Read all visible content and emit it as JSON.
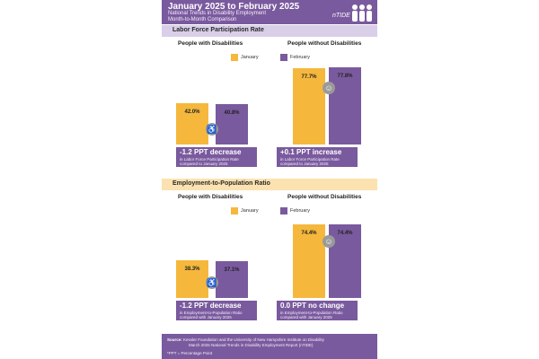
{
  "header": {
    "title": "January 2025 to February 2025",
    "subtitle_line1": "National Trends in Disability Employment",
    "subtitle_line2": "Month-to-Month Comparison",
    "logo_text": "nTIDE"
  },
  "colors": {
    "purple": "#7a5a9e",
    "orange": "#f5b83d",
    "section1_bar": "#d9cfe8",
    "section2_bar": "#fbe2b0"
  },
  "legend": {
    "january": "January",
    "february": "February"
  },
  "sections": [
    {
      "title": "Labor Force Participation Rate",
      "groups": [
        {
          "title": "People with Disabilities",
          "icon": "wheelchair-icon",
          "note_main": "-1.2 PPT  decrease",
          "note_line1": "in Labor Force Participation Rate",
          "note_line2": "compared to January 2025"
        },
        {
          "title": "People without Disabilities",
          "icon": "person-icon",
          "note_main": "+0.1 PPT  increase",
          "note_line1": "in Labor Force Participation Rate",
          "note_line2": "compared to January 2025"
        }
      ]
    },
    {
      "title": "Employment-to-Population Ratio",
      "groups": [
        {
          "title": "People with Disabilities",
          "icon": "wheelchair-icon",
          "note_main": "-1.2 PPT  decrease",
          "note_line1": "in Employment-to-Population Ratio",
          "note_line2": "compared with January 2025"
        },
        {
          "title": "People without Disabilities",
          "icon": "person-icon",
          "note_main": "0.0 PPT  no change",
          "note_line1": "in Employment-to-Population Ratio",
          "note_line2": "compared with January 2025"
        }
      ]
    }
  ],
  "footer": {
    "source_label": "Source:",
    "source_line1": "Kessler Foundation and the University of New Hampshire Institute on Disability",
    "source_line2": "March 2025 National Trends in Disability Employment Report (nTIDE)",
    "note": "*PPT = Percentage Point"
  },
  "chart_data": [
    {
      "type": "bar",
      "title": "Labor Force Participation Rate",
      "categories": [
        "People with Disabilities",
        "People without Disabilities"
      ],
      "series": [
        {
          "name": "January",
          "values": [
            42.0,
            77.7
          ],
          "labels": [
            "42.0%",
            "77.7%"
          ]
        },
        {
          "name": "February",
          "values": [
            40.8,
            77.8
          ],
          "labels": [
            "40.8%",
            "77.8%"
          ]
        }
      ],
      "legend": "top"
    },
    {
      "type": "bar",
      "title": "Employment-to-Population Ratio",
      "categories": [
        "People with Disabilities",
        "People without Disabilities"
      ],
      "series": [
        {
          "name": "January",
          "values": [
            38.3,
            74.4
          ],
          "labels": [
            "38.3%",
            "74.4%"
          ]
        },
        {
          "name": "February",
          "values": [
            37.1,
            74.4
          ],
          "labels": [
            "37.1%",
            "74.4%"
          ]
        }
      ],
      "legend": "top"
    }
  ]
}
